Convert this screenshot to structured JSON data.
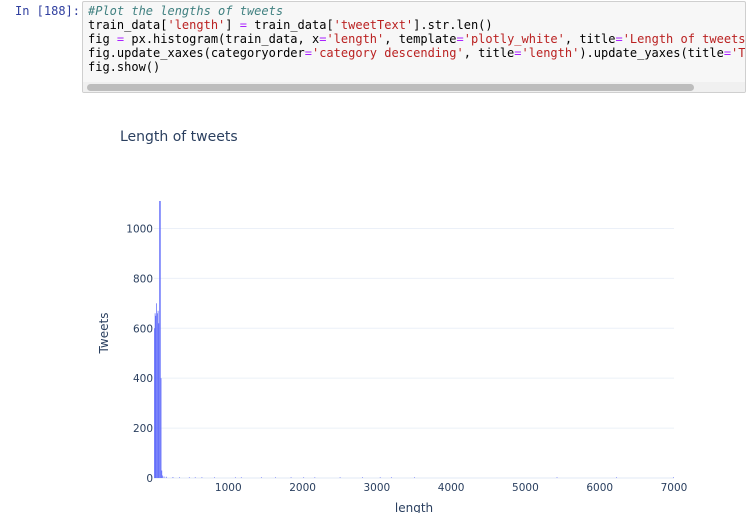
{
  "cell": {
    "prompt": "In [188]:",
    "code_lines": [
      [
        {
          "t": "comment",
          "v": "#Plot the lengths of tweets"
        }
      ],
      [
        {
          "t": "plain",
          "v": "train_data["
        },
        {
          "t": "string",
          "v": "'length'"
        },
        {
          "t": "plain",
          "v": "] "
        },
        {
          "t": "op",
          "v": "="
        },
        {
          "t": "plain",
          "v": " train_data["
        },
        {
          "t": "string",
          "v": "'tweetText'"
        },
        {
          "t": "plain",
          "v": "].str.len()"
        }
      ],
      [
        {
          "t": "plain",
          "v": "fig "
        },
        {
          "t": "op",
          "v": "="
        },
        {
          "t": "plain",
          "v": " px.histogram(train_data, x"
        },
        {
          "t": "op",
          "v": "="
        },
        {
          "t": "string",
          "v": "'length'"
        },
        {
          "t": "plain",
          "v": ", template"
        },
        {
          "t": "op",
          "v": "="
        },
        {
          "t": "string",
          "v": "'plotly_white'"
        },
        {
          "t": "plain",
          "v": ", title"
        },
        {
          "t": "op",
          "v": "="
        },
        {
          "t": "string",
          "v": "'Length of tweets"
        }
      ],
      [
        {
          "t": "plain",
          "v": "fig.update_xaxes(categoryorder"
        },
        {
          "t": "op",
          "v": "="
        },
        {
          "t": "string",
          "v": "'category descending'"
        },
        {
          "t": "plain",
          "v": ", title"
        },
        {
          "t": "op",
          "v": "="
        },
        {
          "t": "string",
          "v": "'length'"
        },
        {
          "t": "plain",
          "v": ").update_yaxes(title"
        },
        {
          "t": "op",
          "v": "="
        },
        {
          "t": "string",
          "v": "'Tw"
        }
      ],
      [
        {
          "t": "plain",
          "v": "fig.show()"
        }
      ]
    ]
  },
  "chart_data": {
    "type": "bar",
    "title": "Length of tweets",
    "xlabel": "length",
    "ylabel": "Tweets",
    "xlim": [
      0,
      7000
    ],
    "ylim": [
      0,
      1130
    ],
    "x_ticks": [
      1000,
      2000,
      3000,
      4000,
      5000,
      6000,
      7000
    ],
    "y_ticks": [
      0,
      200,
      400,
      600,
      800,
      1000
    ],
    "grid": true,
    "bin_width": 10,
    "bars": [
      {
        "x": 5,
        "y": 600
      },
      {
        "x": 15,
        "y": 660
      },
      {
        "x": 25,
        "y": 650
      },
      {
        "x": 35,
        "y": 700
      },
      {
        "x": 45,
        "y": 660
      },
      {
        "x": 55,
        "y": 670
      },
      {
        "x": 65,
        "y": 620
      },
      {
        "x": 75,
        "y": 1110
      },
      {
        "x": 85,
        "y": 1110
      },
      {
        "x": 95,
        "y": 400
      },
      {
        "x": 105,
        "y": 30
      },
      {
        "x": 115,
        "y": 10
      },
      {
        "x": 135,
        "y": 6
      },
      {
        "x": 165,
        "y": 5
      },
      {
        "x": 255,
        "y": 4
      },
      {
        "x": 345,
        "y": 3
      },
      {
        "x": 475,
        "y": 3
      },
      {
        "x": 555,
        "y": 3
      },
      {
        "x": 645,
        "y": 3
      },
      {
        "x": 815,
        "y": 3
      },
      {
        "x": 1095,
        "y": 3
      },
      {
        "x": 1175,
        "y": 3
      },
      {
        "x": 1445,
        "y": 3
      },
      {
        "x": 1635,
        "y": 3
      },
      {
        "x": 1845,
        "y": 3
      },
      {
        "x": 2015,
        "y": 3
      },
      {
        "x": 2165,
        "y": 3
      },
      {
        "x": 2505,
        "y": 3
      },
      {
        "x": 2805,
        "y": 3
      },
      {
        "x": 3045,
        "y": 3
      },
      {
        "x": 3195,
        "y": 3
      },
      {
        "x": 3505,
        "y": 3
      },
      {
        "x": 5425,
        "y": 3
      },
      {
        "x": 6225,
        "y": 3
      },
      {
        "x": 6995,
        "y": 3
      }
    ],
    "colors": {
      "bar": "#636efa",
      "grid": "#ebf0f8",
      "text": "#2a3f5f"
    }
  }
}
